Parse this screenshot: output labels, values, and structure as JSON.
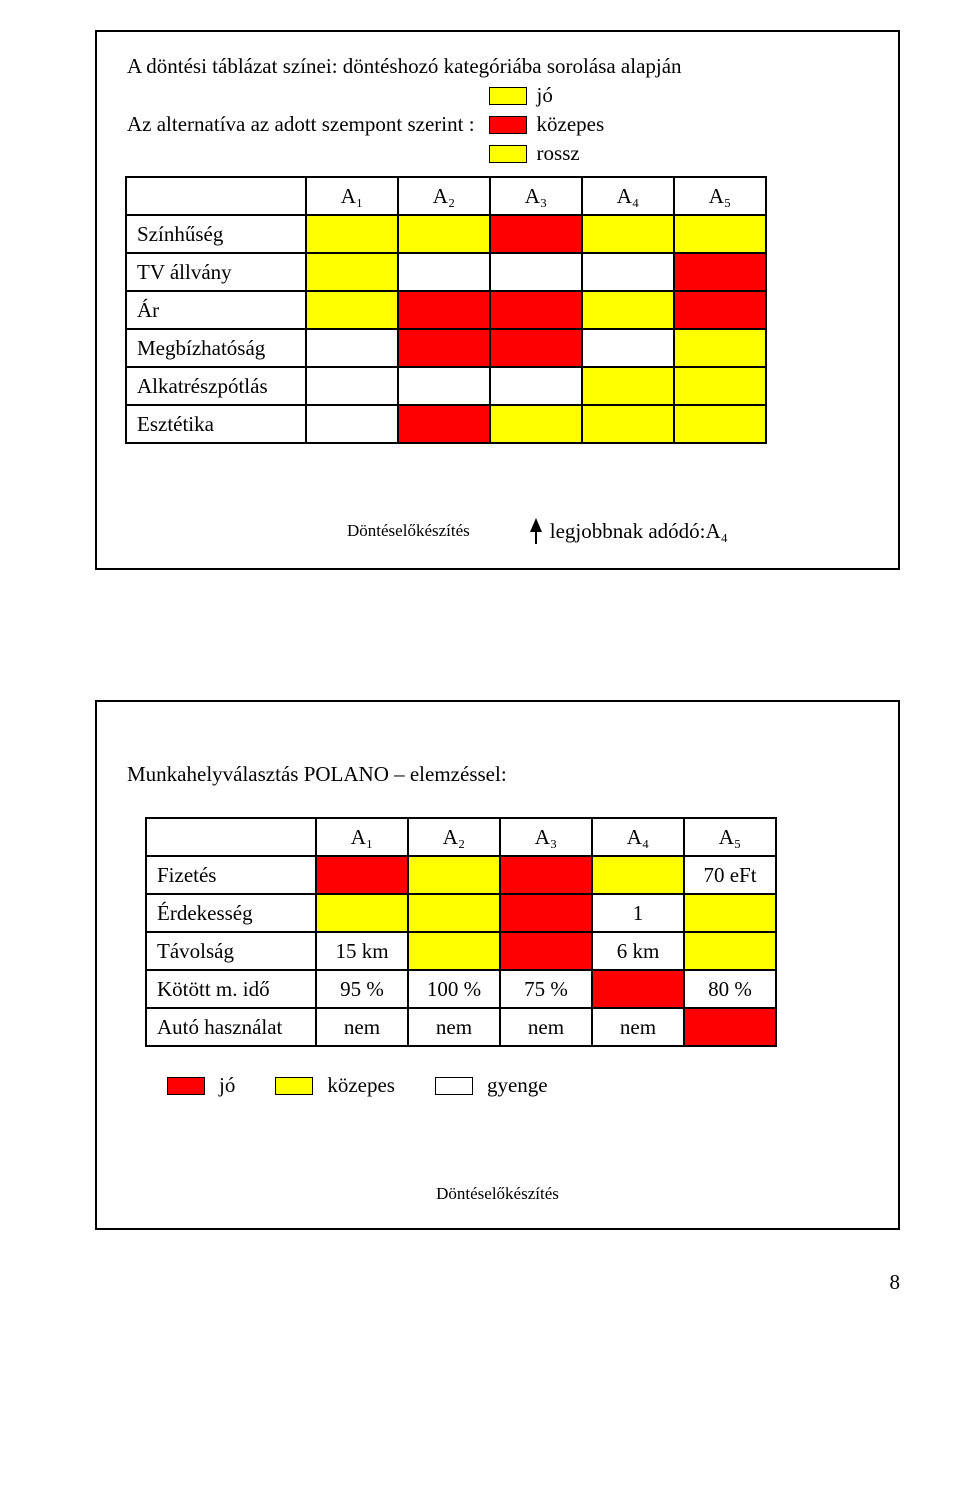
{
  "colors": {
    "red": "#ff0000",
    "yellow": "#ffff00",
    "white": "#ffffff",
    "black": "#000000"
  },
  "slide1": {
    "line1": "A döntési táblázat színei: döntéshozó kategóriába sorolása alapján",
    "line2_prefix": "Az alternatíva az adott szempont szerint :",
    "legend": [
      {
        "color": "#ffff00",
        "label": "jó"
      },
      {
        "color": "#ff0000",
        "label": "közepes"
      },
      {
        "color": "#ffff00",
        "label": "rossz"
      }
    ],
    "headers": [
      "A₁",
      "A₂",
      "A₃",
      "A₄",
      "A₅"
    ],
    "rows": [
      {
        "label": "Színhűség",
        "cells": [
          "#ffff00",
          "#ffff00",
          "#ff0000",
          "#ffff00",
          "#ffff00"
        ]
      },
      {
        "label": "TV állvány",
        "cells": [
          "#ffff00",
          "#ffffff",
          "#ffffff",
          "#ffffff",
          "#ff0000"
        ]
      },
      {
        "label": "Ár",
        "cells": [
          "#ffff00",
          "#ff0000",
          "#ff0000",
          "#ffff00",
          "#ff0000"
        ]
      },
      {
        "label": "Megbízhatóság",
        "cells": [
          "#ffffff",
          "#ff0000",
          "#ff0000",
          "#ffffff",
          "#ffff00"
        ]
      },
      {
        "label": "Alkatrészpótlás",
        "cells": [
          "#ffffff",
          "#ffffff",
          "#ffffff",
          "#ffff00",
          "#ffff00"
        ]
      },
      {
        "label": "Esztétika",
        "cells": [
          "#ffffff",
          "#ff0000",
          "#ffff00",
          "#ffff00",
          "#ffff00"
        ]
      }
    ],
    "footer_center": "Döntéselőkészítés",
    "footer_right": "legjobbnak adódó:A₄"
  },
  "slide2": {
    "title": "Munkahelyválasztás POLANO – elemzéssel:",
    "headers": [
      "A₁",
      "A₂",
      "A₃",
      "A₄",
      "A₅"
    ],
    "rows": [
      {
        "label": "Fizetés",
        "cells": [
          {
            "bg": "#ff0000",
            "text": ""
          },
          {
            "bg": "#ffff00",
            "text": ""
          },
          {
            "bg": "#ff0000",
            "text": ""
          },
          {
            "bg": "#ffff00",
            "text": ""
          },
          {
            "bg": "#ffffff",
            "text": "70 eFt"
          }
        ]
      },
      {
        "label": "Érdekesség",
        "cells": [
          {
            "bg": "#ffff00",
            "text": ""
          },
          {
            "bg": "#ffff00",
            "text": ""
          },
          {
            "bg": "#ff0000",
            "text": ""
          },
          {
            "bg": "#ffffff",
            "text": "1"
          },
          {
            "bg": "#ffff00",
            "text": ""
          }
        ]
      },
      {
        "label": "Távolság",
        "cells": [
          {
            "bg": "#ffffff",
            "text": "15 km"
          },
          {
            "bg": "#ffff00",
            "text": ""
          },
          {
            "bg": "#ff0000",
            "text": ""
          },
          {
            "bg": "#ffffff",
            "text": "6 km"
          },
          {
            "bg": "#ffff00",
            "text": ""
          }
        ]
      },
      {
        "label": "Kötött m. idő",
        "cells": [
          {
            "bg": "#ffffff",
            "text": "95 %"
          },
          {
            "bg": "#ffffff",
            "text": "100 %"
          },
          {
            "bg": "#ffffff",
            "text": "75 %"
          },
          {
            "bg": "#ff0000",
            "text": ""
          },
          {
            "bg": "#ffffff",
            "text": "80 %"
          }
        ]
      },
      {
        "label": "Autó használat",
        "cells": [
          {
            "bg": "#ffffff",
            "text": "nem"
          },
          {
            "bg": "#ffffff",
            "text": "nem"
          },
          {
            "bg": "#ffffff",
            "text": "nem"
          },
          {
            "bg": "#ffffff",
            "text": "nem"
          },
          {
            "bg": "#ff0000",
            "text": ""
          }
        ]
      }
    ],
    "legend": [
      {
        "color": "#ff0000",
        "label": "jó"
      },
      {
        "color": "#ffff00",
        "label": "közepes"
      },
      {
        "color": "#ffffff",
        "label": "gyenge"
      }
    ],
    "footer": "Döntéselőkészítés"
  },
  "page_number": "8"
}
